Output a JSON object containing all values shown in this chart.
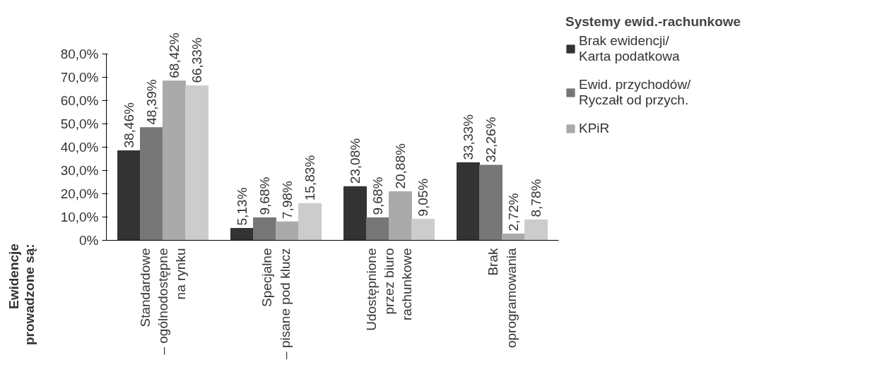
{
  "chart_data": {
    "type": "bar",
    "annotations": [
      "Ewidencje\nprowadzone są:"
    ],
    "legend_title": "Systemy ewid.-rachunkowe",
    "legend": "top right",
    "categories": [
      "Standardowe\n– ogólnodostępne\nna rynku",
      "Specjalne\n– pisane pod klucz",
      "Udostępnione\nprzez biuro\nrachunkowe",
      "Brak\noprogramowania"
    ],
    "series": [
      {
        "name": "Brak ewidencji/\nKarta podatkowa",
        "color": "#333333",
        "values": [
          38.46,
          5.13,
          23.08,
          33.33
        ],
        "value_labels": [
          "38,46%",
          "5,13%",
          "23,08%",
          "33,33%"
        ]
      },
      {
        "name": "Ewid. przychodów/\nRyczałt od przych.",
        "color": "#777777",
        "values": [
          48.39,
          9.68,
          9.68,
          32.26
        ],
        "value_labels": [
          "48,39%",
          "9,68%",
          "9,68%",
          "32,26%"
        ]
      },
      {
        "name": "KPiR",
        "color": "#aaaaaa",
        "values": [
          68.42,
          7.98,
          20.88,
          2.72
        ],
        "value_labels": [
          "68,42%",
          "7,98%",
          "20,88%",
          "2,72%"
        ]
      },
      {
        "color": "#cccccc",
        "values": [
          66.33,
          15.83,
          9.05,
          8.78
        ],
        "value_labels": [
          "66,33%",
          "15,83%",
          "9,05%",
          "8,78%"
        ]
      }
    ],
    "ylim": [
      0,
      80
    ],
    "yticks": [
      {
        "value": 0,
        "label": "0%"
      },
      {
        "value": 10,
        "label": "10,0%"
      },
      {
        "value": 20,
        "label": "20,0%"
      },
      {
        "value": 30,
        "label": "30,0%"
      },
      {
        "value": 40,
        "label": "40,0%"
      },
      {
        "value": 50,
        "label": "50,0%"
      },
      {
        "value": 60,
        "label": "60,0%"
      },
      {
        "value": 70,
        "label": "70,0%"
      },
      {
        "value": 80,
        "label": "80,0%"
      }
    ],
    "grid": false
  }
}
